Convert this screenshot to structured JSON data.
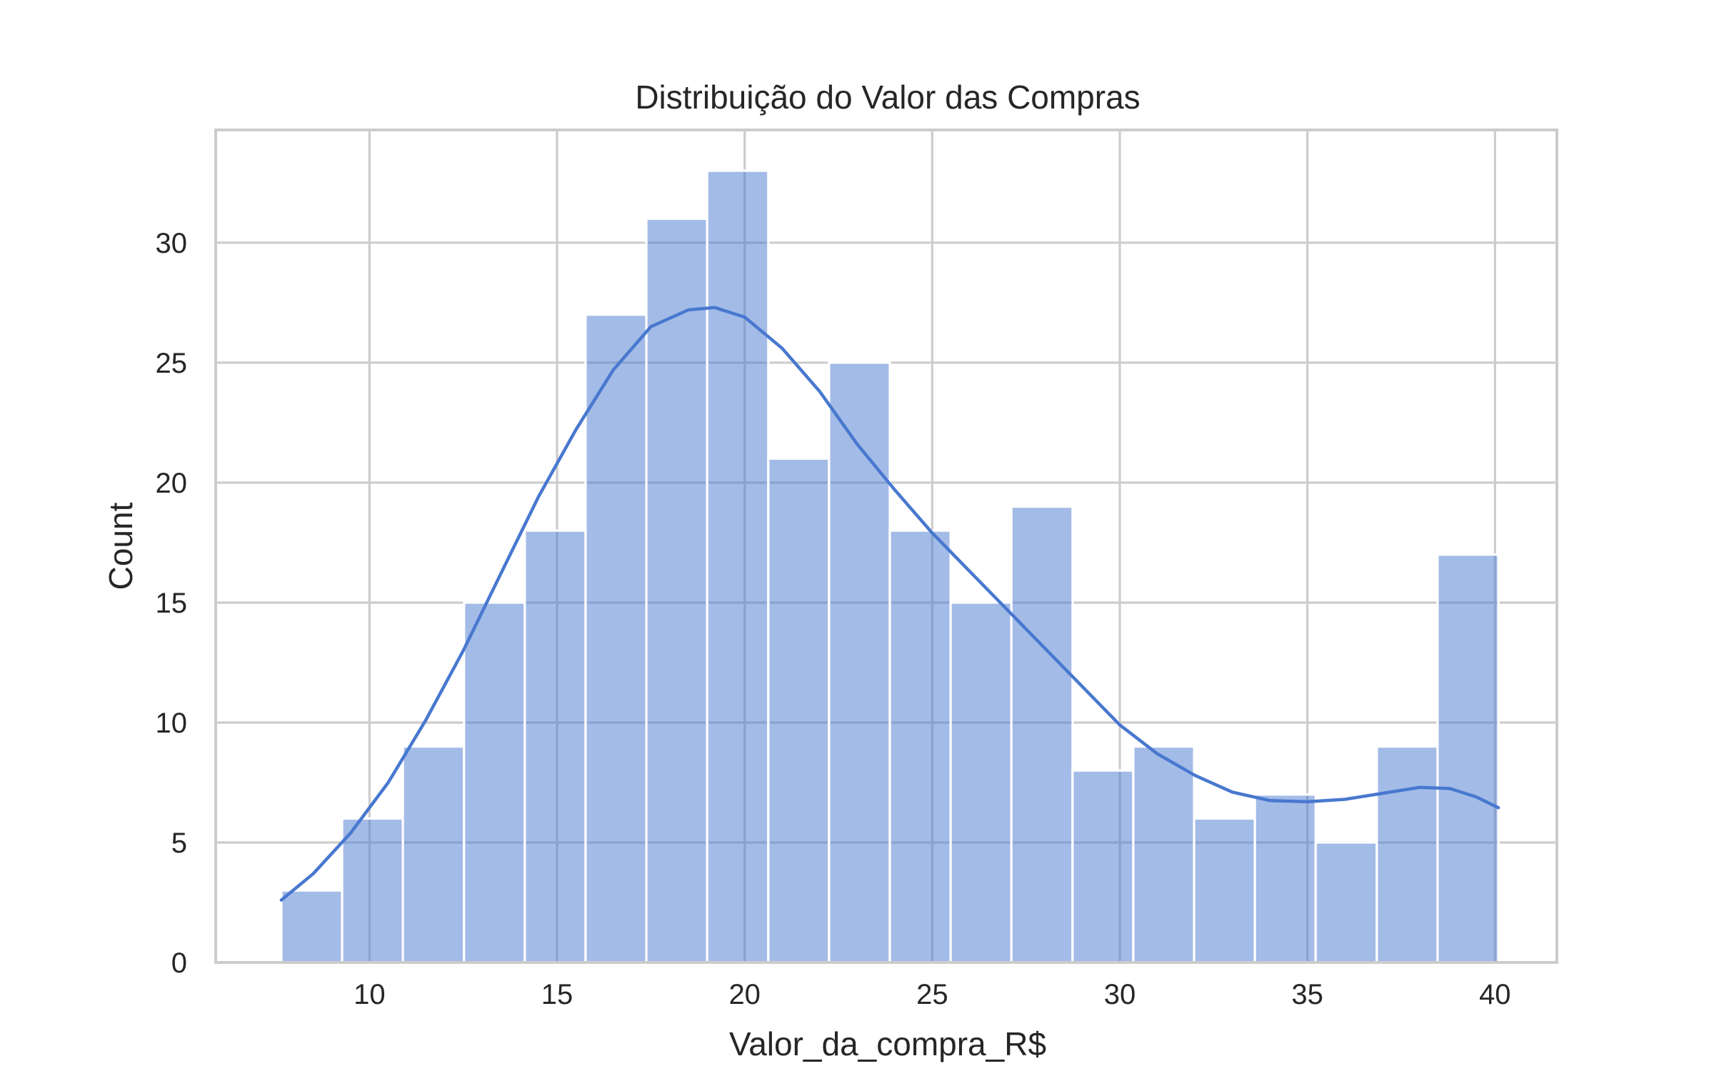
{
  "chart_data": {
    "type": "bar",
    "subtype": "histogram_with_kde",
    "title": "Distribuição do Valor das Compras",
    "xlabel": "Valor_da_compra_R$",
    "ylabel": "Count",
    "xlim": [
      5.9,
      41.65
    ],
    "ylim": [
      0,
      34.7
    ],
    "xticks": [
      10,
      15,
      20,
      25,
      30,
      35,
      40
    ],
    "yticks": [
      0,
      5,
      10,
      15,
      20,
      25,
      30
    ],
    "grid": true,
    "bins": [
      {
        "x0": 7.65,
        "x1": 9.27,
        "count": 3
      },
      {
        "x0": 9.27,
        "x1": 10.89,
        "count": 6
      },
      {
        "x0": 10.89,
        "x1": 12.52,
        "count": 9
      },
      {
        "x0": 12.52,
        "x1": 14.14,
        "count": 15
      },
      {
        "x0": 14.14,
        "x1": 15.76,
        "count": 18
      },
      {
        "x0": 15.76,
        "x1": 17.38,
        "count": 27
      },
      {
        "x0": 17.38,
        "x1": 19.0,
        "count": 31
      },
      {
        "x0": 19.0,
        "x1": 20.63,
        "count": 33
      },
      {
        "x0": 20.63,
        "x1": 22.25,
        "count": 21
      },
      {
        "x0": 22.25,
        "x1": 23.87,
        "count": 25
      },
      {
        "x0": 23.87,
        "x1": 25.49,
        "count": 18
      },
      {
        "x0": 25.49,
        "x1": 27.11,
        "count": 15
      },
      {
        "x0": 27.11,
        "x1": 28.74,
        "count": 19
      },
      {
        "x0": 28.74,
        "x1": 30.36,
        "count": 8
      },
      {
        "x0": 30.36,
        "x1": 31.98,
        "count": 9
      },
      {
        "x0": 31.98,
        "x1": 33.6,
        "count": 6
      },
      {
        "x0": 33.6,
        "x1": 35.22,
        "count": 7
      },
      {
        "x0": 35.22,
        "x1": 36.85,
        "count": 5
      },
      {
        "x0": 36.85,
        "x1": 38.47,
        "count": 9
      },
      {
        "x0": 38.47,
        "x1": 40.09,
        "count": 17
      }
    ],
    "kde": {
      "x": [
        7.65,
        8.5,
        9.5,
        10.5,
        11.5,
        12.5,
        13.5,
        14.5,
        15.5,
        16.5,
        17.5,
        18.5,
        19.2,
        20.0,
        21.0,
        22.0,
        23.0,
        24.0,
        25.0,
        26.0,
        27.0,
        28.0,
        29.0,
        30.0,
        31.0,
        32.0,
        33.0,
        34.0,
        35.0,
        36.0,
        37.0,
        38.0,
        38.8,
        39.5,
        40.09
      ],
      "y": [
        2.6,
        3.7,
        5.4,
        7.5,
        10.1,
        13.0,
        16.2,
        19.4,
        22.2,
        24.7,
        26.5,
        27.2,
        27.3,
        26.9,
        25.6,
        23.8,
        21.6,
        19.7,
        17.9,
        16.3,
        14.7,
        13.1,
        11.5,
        9.9,
        8.7,
        7.8,
        7.1,
        6.75,
        6.7,
        6.8,
        7.05,
        7.3,
        7.25,
        6.9,
        6.45
      ]
    },
    "colors": {
      "bar": "#4878cf",
      "kde": "#4878cf"
    }
  }
}
